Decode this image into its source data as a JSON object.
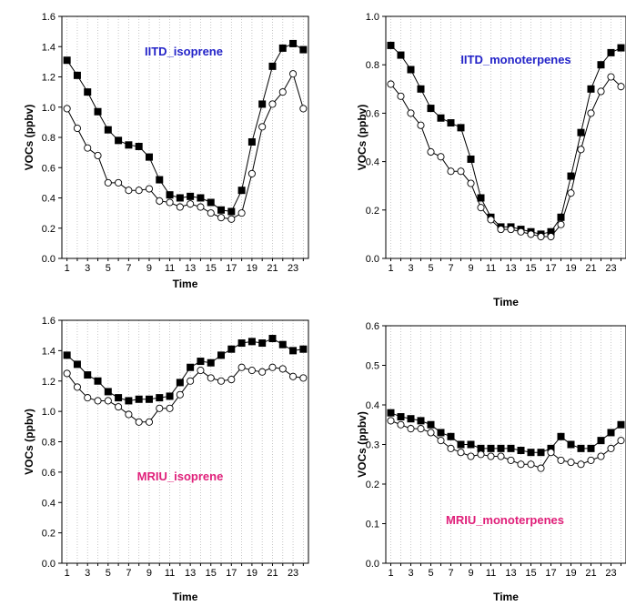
{
  "chart_data": [
    {
      "type": "line",
      "title": "IITD_isoprene",
      "title_color": "#2323c8",
      "xlabel": "Time",
      "ylabel": "VOCs (ppbv)",
      "xlim": [
        0.5,
        24.5
      ],
      "ylim": [
        0,
        1.6
      ],
      "yticks": [
        0.0,
        0.2,
        0.4,
        0.6,
        0.8,
        1.0,
        1.2,
        1.4,
        1.6
      ],
      "xticks": [
        1,
        3,
        5,
        7,
        9,
        11,
        13,
        15,
        17,
        19,
        21,
        23
      ],
      "grid": "vertical-dotted",
      "x": [
        1,
        2,
        3,
        4,
        5,
        6,
        7,
        8,
        9,
        10,
        11,
        12,
        13,
        14,
        15,
        16,
        17,
        18,
        19,
        20,
        21,
        22,
        23,
        24
      ],
      "series": [
        {
          "marker": "filled-square",
          "values": [
            1.31,
            1.21,
            1.1,
            0.97,
            0.85,
            0.78,
            0.75,
            0.74,
            0.67,
            0.52,
            0.42,
            0.4,
            0.41,
            0.4,
            0.37,
            0.32,
            0.31,
            0.45,
            0.77,
            1.02,
            1.27,
            1.39,
            1.42,
            1.38
          ]
        },
        {
          "marker": "open-circle",
          "values": [
            0.99,
            0.86,
            0.73,
            0.68,
            0.5,
            0.5,
            0.45,
            0.45,
            0.46,
            0.38,
            0.37,
            0.34,
            0.36,
            0.34,
            0.3,
            0.27,
            0.26,
            0.3,
            0.56,
            0.87,
            1.02,
            1.1,
            1.22,
            0.99
          ]
        }
      ]
    },
    {
      "type": "line",
      "title": "IITD_monoterpenes",
      "title_color": "#2323c8",
      "xlabel": "Time",
      "ylabel": "VOCs (ppbv)",
      "xlim": [
        0.5,
        24.5
      ],
      "ylim": [
        0,
        1.0
      ],
      "yticks": [
        0.0,
        0.2,
        0.4,
        0.6,
        0.8,
        1.0
      ],
      "xticks": [
        1,
        3,
        5,
        7,
        9,
        11,
        13,
        15,
        17,
        19,
        21,
        23
      ],
      "grid": "vertical-dotted",
      "x": [
        1,
        2,
        3,
        4,
        5,
        6,
        7,
        8,
        9,
        10,
        11,
        12,
        13,
        14,
        15,
        16,
        17,
        18,
        19,
        20,
        21,
        22,
        23,
        24
      ],
      "series": [
        {
          "marker": "filled-square",
          "values": [
            0.88,
            0.84,
            0.78,
            0.7,
            0.62,
            0.58,
            0.56,
            0.54,
            0.41,
            0.25,
            0.17,
            0.13,
            0.13,
            0.12,
            0.11,
            0.1,
            0.11,
            0.17,
            0.34,
            0.52,
            0.7,
            0.8,
            0.85,
            0.87
          ]
        },
        {
          "marker": "open-circle",
          "values": [
            0.72,
            0.67,
            0.6,
            0.55,
            0.44,
            0.42,
            0.36,
            0.36,
            0.31,
            0.21,
            0.16,
            0.12,
            0.12,
            0.11,
            0.1,
            0.09,
            0.09,
            0.14,
            0.27,
            0.45,
            0.6,
            0.69,
            0.75,
            0.71
          ]
        }
      ]
    },
    {
      "type": "line",
      "title": "MRIU_isoprene",
      "title_color": "#e0207a",
      "xlabel": "Time",
      "ylabel": "VOCs (ppbv)",
      "xlim": [
        0.5,
        24.5
      ],
      "ylim": [
        0,
        1.6
      ],
      "yticks": [
        0.0,
        0.2,
        0.4,
        0.6,
        0.8,
        1.0,
        1.2,
        1.4,
        1.6
      ],
      "xticks": [
        1,
        3,
        5,
        7,
        9,
        11,
        13,
        15,
        17,
        19,
        21,
        23
      ],
      "grid": "vertical-dotted",
      "x": [
        1,
        2,
        3,
        4,
        5,
        6,
        7,
        8,
        9,
        10,
        11,
        12,
        13,
        14,
        15,
        16,
        17,
        18,
        19,
        20,
        21,
        22,
        23,
        24
      ],
      "series": [
        {
          "marker": "filled-square",
          "values": [
            1.37,
            1.31,
            1.24,
            1.2,
            1.13,
            1.09,
            1.07,
            1.08,
            1.08,
            1.09,
            1.1,
            1.19,
            1.29,
            1.33,
            1.32,
            1.37,
            1.41,
            1.45,
            1.46,
            1.45,
            1.48,
            1.44,
            1.4,
            1.41
          ]
        },
        {
          "marker": "open-circle",
          "values": [
            1.25,
            1.16,
            1.09,
            1.07,
            1.07,
            1.03,
            0.98,
            0.93,
            0.93,
            1.02,
            1.02,
            1.11,
            1.2,
            1.27,
            1.22,
            1.2,
            1.21,
            1.29,
            1.27,
            1.26,
            1.29,
            1.28,
            1.23,
            1.22
          ]
        }
      ]
    },
    {
      "type": "line",
      "title": "MRIU_monoterpenes",
      "title_color": "#e0207a",
      "xlabel": "Time",
      "ylabel": "VOCs (ppbv)",
      "xlim": [
        0.5,
        24.5
      ],
      "ylim": [
        0,
        0.6
      ],
      "yticks": [
        0.0,
        0.1,
        0.2,
        0.3,
        0.4,
        0.5,
        0.6
      ],
      "xticks": [
        1,
        3,
        5,
        7,
        9,
        11,
        13,
        15,
        17,
        19,
        21,
        23
      ],
      "grid": "vertical-dotted",
      "x": [
        1,
        2,
        3,
        4,
        5,
        6,
        7,
        8,
        9,
        10,
        11,
        12,
        13,
        14,
        15,
        16,
        17,
        18,
        19,
        20,
        21,
        22,
        23,
        24
      ],
      "series": [
        {
          "marker": "filled-square",
          "values": [
            0.38,
            0.37,
            0.365,
            0.36,
            0.35,
            0.33,
            0.32,
            0.3,
            0.3,
            0.29,
            0.29,
            0.29,
            0.29,
            0.285,
            0.28,
            0.28,
            0.29,
            0.32,
            0.3,
            0.29,
            0.29,
            0.31,
            0.33,
            0.35
          ]
        },
        {
          "marker": "open-circle",
          "values": [
            0.36,
            0.35,
            0.34,
            0.34,
            0.33,
            0.31,
            0.29,
            0.28,
            0.27,
            0.275,
            0.27,
            0.27,
            0.26,
            0.25,
            0.25,
            0.24,
            0.28,
            0.26,
            0.255,
            0.25,
            0.26,
            0.27,
            0.29,
            0.31
          ]
        }
      ]
    }
  ]
}
